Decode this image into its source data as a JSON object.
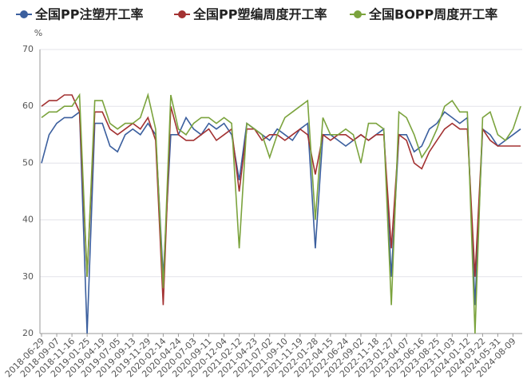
{
  "chart_data": {
    "type": "line",
    "y_label": "%",
    "categories": [
      "2018-06-29",
      null,
      "2018-09-07",
      null,
      "2018-11-16",
      null,
      "2019-01-25",
      null,
      "2019-04-19",
      null,
      "2019-07-05",
      null,
      "2019-09-13",
      null,
      "2019-11-29",
      null,
      "2020-02-14",
      null,
      "2020-04-24",
      null,
      "2020-07-03",
      null,
      "2020-09-11",
      null,
      "2020-12-04",
      null,
      "2021-02-12",
      null,
      "2021-04-23",
      null,
      "2021-07-02",
      null,
      "2021-09-10",
      null,
      "2021-11-19",
      null,
      "2022-01-28",
      null,
      "2022-04-15",
      null,
      "2022-06-24",
      null,
      "2022-09-02",
      null,
      "2022-11-18",
      null,
      "2023-01-27",
      null,
      "2023-04-07",
      null,
      "2023-06-16",
      null,
      "2023-08-25",
      null,
      "2023-11-03",
      null,
      "2024-01-12",
      null,
      "2024-03-22",
      null,
      "2024-05-31",
      null,
      "2024-08-09",
      null
    ],
    "series": [
      {
        "name": "全国PP注塑开工率",
        "color": "#3b5f9e",
        "values": [
          50,
          55,
          57,
          58,
          58,
          59,
          20,
          57,
          57,
          53,
          52,
          55,
          56,
          55,
          57,
          55,
          30,
          55,
          55,
          58,
          56,
          55,
          57,
          56,
          57,
          55,
          47,
          57,
          56,
          55,
          54,
          56,
          55,
          54,
          56,
          57,
          35,
          55,
          55,
          54,
          53,
          54,
          55,
          54,
          55,
          56,
          30,
          55,
          55,
          52,
          53,
          56,
          57,
          59,
          58,
          57,
          58,
          25,
          56,
          55,
          53,
          54,
          55,
          56
        ]
      },
      {
        "name": "全国PP塑编周度开工率",
        "color": "#a33232",
        "values": [
          60,
          61,
          61,
          62,
          62,
          59,
          30,
          59,
          59,
          56,
          55,
          56,
          57,
          56,
          58,
          54,
          25,
          60,
          55,
          54,
          54,
          55,
          56,
          54,
          55,
          56,
          45,
          56,
          56,
          54,
          55,
          55,
          54,
          55,
          56,
          55,
          48,
          55,
          54,
          55,
          55,
          54,
          55,
          54,
          55,
          55,
          35,
          55,
          54,
          50,
          49,
          52,
          54,
          56,
          57,
          56,
          56,
          30,
          56,
          54,
          53,
          53,
          53,
          53
        ]
      },
      {
        "name": "全国BOPP周度开工率",
        "color": "#7ba33d",
        "values": [
          58,
          59,
          59,
          60,
          60,
          62,
          30,
          61,
          61,
          57,
          56,
          57,
          57,
          58,
          62,
          56,
          28,
          62,
          56,
          55,
          57,
          58,
          58,
          57,
          58,
          57,
          35,
          57,
          56,
          55,
          51,
          55,
          58,
          59,
          60,
          61,
          40,
          58,
          55,
          55,
          56,
          55,
          50,
          57,
          57,
          56,
          25,
          59,
          58,
          55,
          51,
          53,
          56,
          60,
          61,
          59,
          59,
          20,
          58,
          59,
          55,
          54,
          56,
          60
        ]
      }
    ],
    "ylim": [
      20,
      70
    ],
    "yticks": [
      20,
      30,
      40,
      50,
      60,
      70
    ],
    "grid": true
  }
}
